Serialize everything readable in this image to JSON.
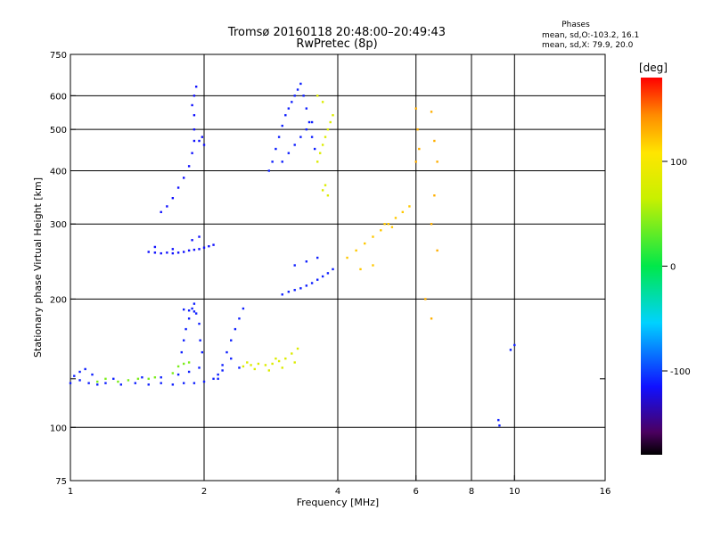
{
  "chart_data": {
    "type": "scatter",
    "title": "Tromsø 20160118 20:48:00–20:49:43",
    "subtitle": "RwPretec (8p)",
    "xlabel": "Frequency [MHz]",
    "ylabel": "Stationary phase Virtual Height [km]",
    "x_scale": "log2",
    "y_scale": "log",
    "xlim": [
      1,
      16
    ],
    "ylim": [
      75,
      750
    ],
    "x_ticks": [
      1,
      2,
      4,
      6,
      8,
      10,
      16
    ],
    "y_ticks": [
      75,
      100,
      200,
      300,
      400,
      500,
      600,
      750
    ],
    "y_minor_gridlines": [
      130
    ],
    "grid": true,
    "x_gridlines": [
      2,
      4,
      6,
      8,
      10
    ],
    "y_gridlines": [
      100,
      200,
      300,
      400,
      500,
      600
    ],
    "stats": {
      "heading": "Phases",
      "line1": "mean, sd,O:-103.2, 16.1",
      "line2": "mean, sd,X:  79.9, 20.0"
    },
    "colorbar": {
      "label": "[deg]",
      "range": [
        -180,
        180
      ],
      "ticks": [
        100,
        0,
        -100
      ]
    },
    "clusters": [
      {
        "desc": "low E-layer trace",
        "phase": -110,
        "points": [
          [
            1.0,
            127
          ],
          [
            1.05,
            129
          ],
          [
            1.1,
            127
          ],
          [
            1.15,
            126
          ],
          [
            1.2,
            127
          ],
          [
            1.3,
            126
          ],
          [
            1.4,
            127
          ],
          [
            1.5,
            126
          ],
          [
            1.6,
            127
          ],
          [
            1.7,
            126
          ],
          [
            1.8,
            127
          ],
          [
            1.9,
            127
          ],
          [
            2.0,
            128
          ],
          [
            2.1,
            130
          ],
          [
            2.15,
            133
          ],
          [
            2.2,
            136
          ],
          [
            1.02,
            132
          ],
          [
            1.05,
            135
          ],
          [
            1.08,
            137
          ],
          [
            1.12,
            133
          ],
          [
            1.25,
            130
          ],
          [
            1.45,
            131
          ],
          [
            1.6,
            131
          ],
          [
            1.75,
            133
          ],
          [
            1.85,
            135
          ],
          [
            1.95,
            138
          ]
        ]
      },
      {
        "desc": "lower E mixed phase",
        "phase": 40,
        "points": [
          [
            1.15,
            128
          ],
          [
            1.2,
            130
          ],
          [
            1.28,
            128
          ],
          [
            1.35,
            129
          ],
          [
            1.42,
            130
          ],
          [
            1.5,
            130
          ],
          [
            1.55,
            131
          ],
          [
            1.7,
            134
          ],
          [
            1.75,
            139
          ],
          [
            1.8,
            141
          ],
          [
            1.85,
            142
          ]
        ]
      },
      {
        "desc": "rising blue column near 1.9 MHz",
        "phase": -110,
        "points": [
          [
            1.78,
            150
          ],
          [
            1.8,
            160
          ],
          [
            1.82,
            170
          ],
          [
            1.85,
            180
          ],
          [
            1.88,
            190
          ],
          [
            1.9,
            195
          ],
          [
            1.92,
            185
          ],
          [
            1.95,
            175
          ],
          [
            1.96,
            160
          ],
          [
            1.98,
            150
          ],
          [
            1.8,
            189
          ],
          [
            1.85,
            188
          ],
          [
            1.9,
            187
          ]
        ]
      },
      {
        "desc": "F1 blue trace ~260 km",
        "phase": -115,
        "points": [
          [
            1.5,
            258
          ],
          [
            1.55,
            257
          ],
          [
            1.6,
            256
          ],
          [
            1.65,
            257
          ],
          [
            1.7,
            256
          ],
          [
            1.75,
            257
          ],
          [
            1.8,
            258
          ],
          [
            1.85,
            260
          ],
          [
            1.9,
            261
          ],
          [
            1.95,
            262
          ],
          [
            2.0,
            264
          ],
          [
            2.05,
            266
          ],
          [
            2.1,
            268
          ],
          [
            1.55,
            265
          ],
          [
            1.7,
            262
          ],
          [
            1.88,
            275
          ],
          [
            1.95,
            280
          ]
        ]
      },
      {
        "desc": "F2 blue column near 1.9 MHz",
        "phase": -115,
        "points": [
          [
            1.6,
            320
          ],
          [
            1.65,
            330
          ],
          [
            1.7,
            345
          ],
          [
            1.75,
            365
          ],
          [
            1.8,
            385
          ],
          [
            1.85,
            410
          ],
          [
            1.88,
            440
          ],
          [
            1.9,
            470
          ],
          [
            1.9,
            500
          ],
          [
            1.9,
            540
          ],
          [
            1.88,
            570
          ],
          [
            1.9,
            600
          ],
          [
            1.92,
            630
          ],
          [
            1.95,
            470
          ],
          [
            1.98,
            480
          ],
          [
            2.0,
            460
          ]
        ]
      },
      {
        "desc": "blue column 2.2–2.4 MHz",
        "phase": -110,
        "points": [
          [
            2.15,
            130
          ],
          [
            2.2,
            140
          ],
          [
            2.25,
            150
          ],
          [
            2.3,
            160
          ],
          [
            2.35,
            170
          ],
          [
            2.4,
            180
          ],
          [
            2.45,
            190
          ],
          [
            2.3,
            145
          ],
          [
            2.4,
            138
          ]
        ]
      },
      {
        "desc": "yellow-orange low trace",
        "phase": 80,
        "points": [
          [
            2.45,
            139
          ],
          [
            2.55,
            140
          ],
          [
            2.65,
            141
          ],
          [
            2.75,
            140
          ],
          [
            2.85,
            141
          ],
          [
            2.95,
            143
          ],
          [
            3.05,
            145
          ],
          [
            3.15,
            149
          ],
          [
            3.25,
            153
          ],
          [
            2.6,
            137
          ],
          [
            2.8,
            136
          ],
          [
            3.0,
            138
          ],
          [
            3.2,
            142
          ],
          [
            2.5,
            142
          ],
          [
            2.9,
            145
          ]
        ]
      },
      {
        "desc": "blue 200–250 km cluster",
        "phase": -110,
        "points": [
          [
            3.0,
            205
          ],
          [
            3.1,
            208
          ],
          [
            3.2,
            210
          ],
          [
            3.3,
            212
          ],
          [
            3.4,
            215
          ],
          [
            3.5,
            218
          ],
          [
            3.6,
            222
          ],
          [
            3.7,
            226
          ],
          [
            3.8,
            230
          ],
          [
            3.9,
            235
          ],
          [
            3.2,
            240
          ],
          [
            3.4,
            245
          ],
          [
            3.6,
            250
          ]
        ]
      },
      {
        "desc": "blue F2 cluster 2.8–3.6 MHz",
        "phase": -110,
        "points": [
          [
            2.8,
            400
          ],
          [
            2.85,
            420
          ],
          [
            2.9,
            450
          ],
          [
            2.95,
            480
          ],
          [
            3.0,
            510
          ],
          [
            3.05,
            540
          ],
          [
            3.1,
            560
          ],
          [
            3.15,
            580
          ],
          [
            3.2,
            600
          ],
          [
            3.25,
            620
          ],
          [
            3.3,
            640
          ],
          [
            3.35,
            600
          ],
          [
            3.4,
            560
          ],
          [
            3.45,
            520
          ],
          [
            3.5,
            480
          ],
          [
            3.55,
            450
          ],
          [
            3.0,
            420
          ],
          [
            3.1,
            440
          ],
          [
            3.2,
            460
          ],
          [
            3.3,
            480
          ],
          [
            3.4,
            500
          ],
          [
            3.5,
            520
          ]
        ]
      },
      {
        "desc": "yellow-green F2 column 3.6–3.9 MHz",
        "phase": 80,
        "points": [
          [
            3.6,
            420
          ],
          [
            3.65,
            440
          ],
          [
            3.7,
            460
          ],
          [
            3.75,
            480
          ],
          [
            3.8,
            500
          ],
          [
            3.85,
            520
          ],
          [
            3.9,
            540
          ],
          [
            3.7,
            360
          ],
          [
            3.75,
            370
          ],
          [
            3.8,
            350
          ],
          [
            3.6,
            600
          ],
          [
            3.7,
            580
          ]
        ]
      },
      {
        "desc": "orange-red 4–6 MHz trace",
        "phase": 120,
        "points": [
          [
            4.2,
            250
          ],
          [
            4.4,
            260
          ],
          [
            4.6,
            270
          ],
          [
            4.8,
            280
          ],
          [
            5.0,
            290
          ],
          [
            5.2,
            300
          ],
          [
            5.4,
            310
          ],
          [
            5.6,
            320
          ],
          [
            5.8,
            330
          ],
          [
            4.5,
            235
          ],
          [
            4.8,
            240
          ],
          [
            5.1,
            300
          ],
          [
            5.3,
            295
          ]
        ]
      },
      {
        "desc": "scattered orange near 6 MHz",
        "phase": 130,
        "points": [
          [
            6.0,
            560
          ],
          [
            6.05,
            500
          ],
          [
            6.1,
            450
          ],
          [
            6.0,
            420
          ],
          [
            6.5,
            550
          ],
          [
            6.6,
            470
          ],
          [
            6.7,
            420
          ],
          [
            6.6,
            350
          ],
          [
            6.5,
            300
          ],
          [
            6.7,
            260
          ],
          [
            6.3,
            200
          ],
          [
            6.5,
            180
          ]
        ]
      },
      {
        "desc": "isolated blue echoes at 9–10 MHz",
        "phase": -110,
        "points": [
          [
            9.2,
            104
          ],
          [
            9.25,
            101
          ],
          [
            9.8,
            152
          ],
          [
            10.0,
            156
          ]
        ]
      }
    ]
  }
}
